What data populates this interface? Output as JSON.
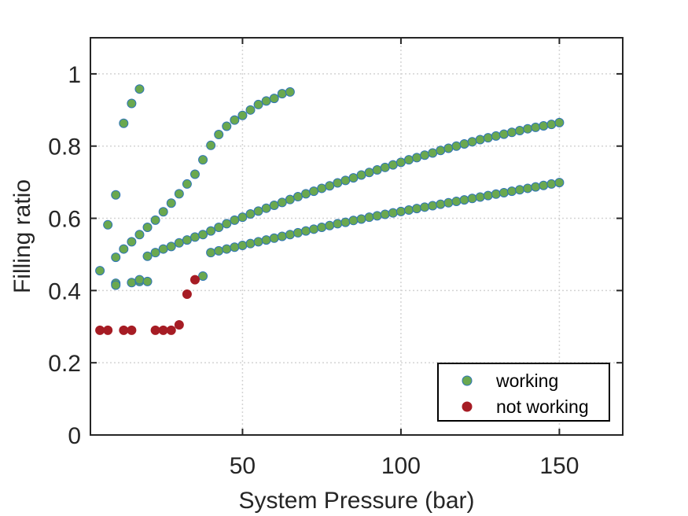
{
  "chart_data": {
    "type": "scatter",
    "xlabel": "System Pressure (bar)",
    "ylabel": "Filling ratio",
    "xlim": [
      2,
      170
    ],
    "ylim": [
      0,
      1.1
    ],
    "xticks": [
      50,
      100,
      150
    ],
    "xtick_labels": [
      "50",
      "100",
      "150"
    ],
    "yticks": [
      0,
      0.2,
      0.4,
      0.6,
      0.8,
      1
    ],
    "ytick_labels": [
      "0",
      "0.2",
      "0.4",
      "0.6",
      "0.8",
      "1"
    ],
    "grid": true,
    "legend_position": "bottom-right",
    "series": [
      {
        "name": "working",
        "color": "#6aa84f",
        "edge_color": "#2e75b6",
        "points": [
          [
            5,
            0.455
          ],
          [
            7.5,
            0.582
          ],
          [
            10,
            0.665
          ],
          [
            12.5,
            0.863
          ],
          [
            15,
            0.918
          ],
          [
            17.5,
            0.958
          ],
          [
            10,
            0.42
          ],
          [
            10,
            0.415
          ],
          [
            15,
            0.422
          ],
          [
            17.5,
            0.425
          ],
          [
            17.5,
            0.43
          ],
          [
            20,
            0.425
          ],
          [
            10,
            0.492
          ],
          [
            12.5,
            0.515
          ],
          [
            15,
            0.535
          ],
          [
            17.5,
            0.555
          ],
          [
            20,
            0.575
          ],
          [
            22.5,
            0.595
          ],
          [
            25,
            0.618
          ],
          [
            27.5,
            0.642
          ],
          [
            30,
            0.668
          ],
          [
            32.5,
            0.695
          ],
          [
            35,
            0.722
          ],
          [
            37.5,
            0.762
          ],
          [
            40,
            0.802
          ],
          [
            42.5,
            0.832
          ],
          [
            45,
            0.855
          ],
          [
            47.5,
            0.872
          ],
          [
            50,
            0.885
          ],
          [
            52.5,
            0.9
          ],
          [
            55,
            0.915
          ],
          [
            57.5,
            0.925
          ],
          [
            60,
            0.932
          ],
          [
            62.5,
            0.945
          ],
          [
            65,
            0.95
          ],
          [
            20,
            0.495
          ],
          [
            22.5,
            0.505
          ],
          [
            25,
            0.515
          ],
          [
            27.5,
            0.522
          ],
          [
            30,
            0.532
          ],
          [
            32.5,
            0.54
          ],
          [
            35,
            0.548
          ],
          [
            37.5,
            0.555
          ],
          [
            40,
            0.565
          ],
          [
            42.5,
            0.575
          ],
          [
            45,
            0.585
          ],
          [
            47.5,
            0.595
          ],
          [
            50,
            0.603
          ],
          [
            52.5,
            0.612
          ],
          [
            55,
            0.62
          ],
          [
            57.5,
            0.628
          ],
          [
            60,
            0.636
          ],
          [
            62.5,
            0.644
          ],
          [
            65,
            0.652
          ],
          [
            67.5,
            0.66
          ],
          [
            70,
            0.668
          ],
          [
            72.5,
            0.675
          ],
          [
            75,
            0.683
          ],
          [
            77.5,
            0.69
          ],
          [
            80,
            0.698
          ],
          [
            82.5,
            0.705
          ],
          [
            85,
            0.712
          ],
          [
            87.5,
            0.72
          ],
          [
            90,
            0.727
          ],
          [
            92.5,
            0.734
          ],
          [
            95,
            0.741
          ],
          [
            97.5,
            0.748
          ],
          [
            100,
            0.755
          ],
          [
            102.5,
            0.762
          ],
          [
            105,
            0.768
          ],
          [
            107.5,
            0.775
          ],
          [
            110,
            0.781
          ],
          [
            112.5,
            0.788
          ],
          [
            115,
            0.794
          ],
          [
            117.5,
            0.8
          ],
          [
            120,
            0.806
          ],
          [
            122.5,
            0.812
          ],
          [
            125,
            0.818
          ],
          [
            127.5,
            0.823
          ],
          [
            130,
            0.828
          ],
          [
            132.5,
            0.833
          ],
          [
            135,
            0.838
          ],
          [
            137.5,
            0.843
          ],
          [
            140,
            0.848
          ],
          [
            142.5,
            0.852
          ],
          [
            145,
            0.856
          ],
          [
            147.5,
            0.86
          ],
          [
            150,
            0.865
          ],
          [
            37.5,
            0.44
          ],
          [
            40,
            0.505
          ],
          [
            42.5,
            0.51
          ],
          [
            45,
            0.515
          ],
          [
            47.5,
            0.52
          ],
          [
            50,
            0.525
          ],
          [
            52.5,
            0.53
          ],
          [
            55,
            0.535
          ],
          [
            57.5,
            0.54
          ],
          [
            60,
            0.545
          ],
          [
            62.5,
            0.55
          ],
          [
            65,
            0.555
          ],
          [
            67.5,
            0.56
          ],
          [
            70,
            0.565
          ],
          [
            72.5,
            0.57
          ],
          [
            75,
            0.575
          ],
          [
            77.5,
            0.58
          ],
          [
            80,
            0.585
          ],
          [
            82.5,
            0.589
          ],
          [
            85,
            0.594
          ],
          [
            87.5,
            0.598
          ],
          [
            90,
            0.603
          ],
          [
            92.5,
            0.607
          ],
          [
            95,
            0.611
          ],
          [
            97.5,
            0.615
          ],
          [
            100,
            0.619
          ],
          [
            102.5,
            0.623
          ],
          [
            105,
            0.627
          ],
          [
            107.5,
            0.631
          ],
          [
            110,
            0.635
          ],
          [
            112.5,
            0.639
          ],
          [
            115,
            0.643
          ],
          [
            117.5,
            0.647
          ],
          [
            120,
            0.651
          ],
          [
            122.5,
            0.655
          ],
          [
            125,
            0.659
          ],
          [
            127.5,
            0.663
          ],
          [
            130,
            0.667
          ],
          [
            132.5,
            0.671
          ],
          [
            135,
            0.675
          ],
          [
            137.5,
            0.679
          ],
          [
            140,
            0.683
          ],
          [
            142.5,
            0.687
          ],
          [
            145,
            0.691
          ],
          [
            147.5,
            0.695
          ],
          [
            150,
            0.699
          ]
        ]
      },
      {
        "name": "not working",
        "color": "#a61c24",
        "edge_color": "#a61c24",
        "points": [
          [
            5,
            0.29
          ],
          [
            7.5,
            0.29
          ],
          [
            12.5,
            0.29
          ],
          [
            15,
            0.29
          ],
          [
            22.5,
            0.29
          ],
          [
            25,
            0.29
          ],
          [
            27.5,
            0.29
          ],
          [
            30,
            0.305
          ],
          [
            32.5,
            0.39
          ],
          [
            35,
            0.43
          ]
        ]
      }
    ]
  }
}
